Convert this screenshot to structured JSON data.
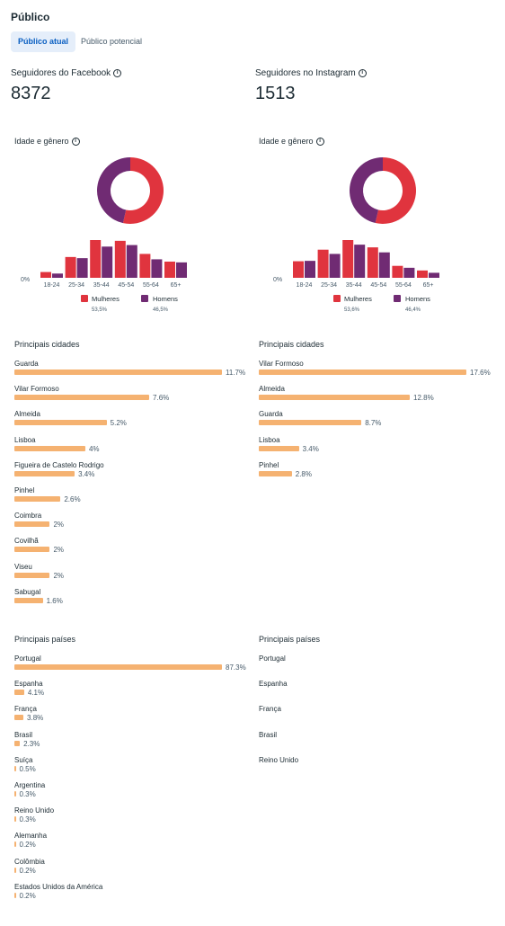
{
  "page": {
    "title": "Público"
  },
  "tabs": {
    "active": "Público atual",
    "inactive": "Público potencial"
  },
  "facebook": {
    "label": "Seguidores do Facebook",
    "value": "8372"
  },
  "instagram": {
    "label": "Seguidores no Instagram",
    "value": "1513"
  },
  "colors": {
    "women": "#e0343e",
    "men": "#702b73",
    "bar": "#f5b271"
  },
  "age_gender_label": "Idade e gênero",
  "age_groups": [
    "18-24",
    "25-34",
    "35-44",
    "45-54",
    "55-64",
    "65+"
  ],
  "zero_label": "0%",
  "legend": {
    "women": "Mulheres",
    "men": "Homens"
  },
  "chart_data": [
    {
      "type": "bar",
      "id": "facebook-age-gender",
      "categories": [
        "18-24",
        "25-34",
        "35-44",
        "45-54",
        "55-64",
        "65+"
      ],
      "series": [
        {
          "name": "Mulheres",
          "values": [
            1.5,
            5.4,
            9.8,
            9.6,
            6.2,
            4.2
          ]
        },
        {
          "name": "Homens",
          "values": [
            1.1,
            5.1,
            8.1,
            8.5,
            4.8,
            4.0
          ]
        }
      ],
      "ylim": [
        0,
        10.5
      ],
      "donut": {
        "women_pct": 53.5,
        "men_pct": 46.5,
        "women_label": "53,5%",
        "men_label": "46,5%"
      }
    },
    {
      "type": "bar",
      "id": "instagram-age-gender",
      "categories": [
        "18-24",
        "25-34",
        "35-44",
        "45-54",
        "55-64",
        "65+"
      ],
      "series": [
        {
          "name": "Mulheres",
          "values": [
            4.3,
            7.3,
            9.8,
            7.9,
            3.1,
            1.9
          ]
        },
        {
          "name": "Homens",
          "values": [
            4.4,
            6.2,
            8.6,
            6.6,
            2.6,
            1.3
          ]
        }
      ],
      "ylim": [
        0,
        10.5
      ],
      "donut": {
        "women_pct": 53.6,
        "men_pct": 46.4,
        "women_label": "53,6%",
        "men_label": "46,4%"
      }
    }
  ],
  "cities_label": "Principais cidades",
  "countries_label": "Principais países",
  "fb_cities": [
    {
      "name": "Guarda",
      "value": 11.7,
      "label": "11.7%"
    },
    {
      "name": "Vilar Formoso",
      "value": 7.6,
      "label": "7.6%"
    },
    {
      "name": "Almeida",
      "value": 5.2,
      "label": "5.2%"
    },
    {
      "name": "Lisboa",
      "value": 4,
      "label": "4%"
    },
    {
      "name": "Figueira de Castelo Rodrigo",
      "value": 3.4,
      "label": "3.4%"
    },
    {
      "name": "Pinhel",
      "value": 2.6,
      "label": "2.6%"
    },
    {
      "name": "Coimbra",
      "value": 2,
      "label": "2%"
    },
    {
      "name": "Covilhã",
      "value": 2,
      "label": "2%"
    },
    {
      "name": "Viseu",
      "value": 2,
      "label": "2%"
    },
    {
      "name": "Sabugal",
      "value": 1.6,
      "label": "1.6%"
    }
  ],
  "ig_cities": [
    {
      "name": "Vilar Formoso",
      "value": 17.6,
      "label": "17.6%"
    },
    {
      "name": "Almeida",
      "value": 12.8,
      "label": "12.8%"
    },
    {
      "name": "Guarda",
      "value": 8.7,
      "label": "8.7%"
    },
    {
      "name": "Lisboa",
      "value": 3.4,
      "label": "3.4%"
    },
    {
      "name": "Pinhel",
      "value": 2.8,
      "label": "2.8%"
    }
  ],
  "fb_countries": [
    {
      "name": "Portugal",
      "value": 87.3,
      "label": "87.3%"
    },
    {
      "name": "Espanha",
      "value": 4.1,
      "label": "4.1%"
    },
    {
      "name": "França",
      "value": 3.8,
      "label": "3.8%"
    },
    {
      "name": "Brasil",
      "value": 2.3,
      "label": "2.3%"
    },
    {
      "name": "Suíça",
      "value": 0.5,
      "label": "0.5%"
    },
    {
      "name": "Argentina",
      "value": 0.3,
      "label": "0.3%"
    },
    {
      "name": "Reino Unido",
      "value": 0.3,
      "label": "0.3%"
    },
    {
      "name": "Alemanha",
      "value": 0.2,
      "label": "0.2%"
    },
    {
      "name": "Colômbia",
      "value": 0.2,
      "label": "0.2%"
    },
    {
      "name": "Estados Unidos da América",
      "value": 0.2,
      "label": "0.2%"
    }
  ],
  "ig_countries": [
    "Portugal",
    "Espanha",
    "França",
    "Brasil",
    "Reino Unido"
  ]
}
